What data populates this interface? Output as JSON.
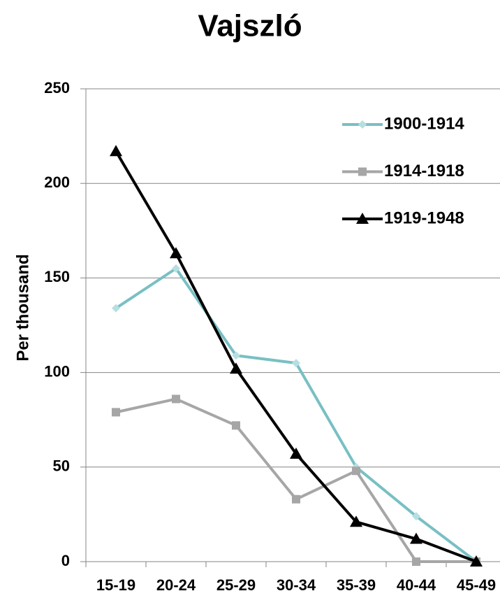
{
  "chart_data": {
    "type": "line",
    "title": "Vajszló",
    "y_label": "Per thousand",
    "categories": [
      "15-19",
      "20-24",
      "25-29",
      "30-34",
      "35-39",
      "40-44",
      "45-49"
    ],
    "series": [
      {
        "name": "1900-1914",
        "color": "#78c0c4",
        "marker": "diamond",
        "values": [
          134,
          155,
          109,
          105,
          50,
          24,
          0
        ]
      },
      {
        "name": "1914-1918",
        "color": "#a6a6a6",
        "marker": "square",
        "values": [
          79,
          86,
          72,
          33,
          48,
          0,
          0
        ]
      },
      {
        "name": "1919-1948",
        "color": "#000000",
        "marker": "triangle",
        "values": [
          217,
          163,
          102,
          57,
          21,
          12,
          0
        ]
      }
    ],
    "ylim": [
      0,
      250
    ],
    "yticks": [
      0,
      50,
      100,
      150,
      200,
      250
    ],
    "grid": true,
    "legend": "upper right"
  }
}
